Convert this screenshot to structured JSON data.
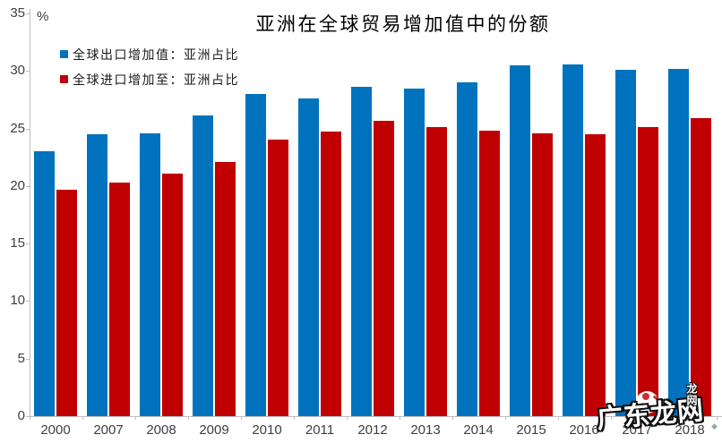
{
  "chart_data": {
    "type": "bar",
    "title": "亚洲在全球贸易增加值中的份额",
    "unit_label": "%",
    "xlabel": "",
    "ylabel": "%",
    "ylim": [
      0,
      35
    ],
    "y_ticks": [
      0,
      5,
      10,
      15,
      20,
      25,
      30,
      35
    ],
    "grid": false,
    "legend_position": "top-left",
    "axis_color": "#bfbfbf",
    "tick_text_color": "#3f3f3f",
    "categories": [
      "2000",
      "2007",
      "2008",
      "2009",
      "2010",
      "2011",
      "2012",
      "2013",
      "2014",
      "2015",
      "2016",
      "2017",
      "2018"
    ],
    "series": [
      {
        "name": "全球出口增加值：亚洲占比",
        "color": "#0072be",
        "values": [
          23.0,
          24.5,
          24.6,
          26.1,
          28.0,
          27.6,
          28.6,
          28.5,
          29.0,
          30.5,
          30.6,
          30.1,
          30.2
        ]
      },
      {
        "name": "全球进口增加至：亚洲占比",
        "color": "#c00000",
        "values": [
          19.7,
          20.3,
          21.1,
          22.1,
          24.0,
          24.7,
          25.7,
          25.1,
          24.8,
          24.6,
          24.5,
          25.1,
          25.9
        ]
      }
    ]
  },
  "watermark": {
    "text": "广东龙网",
    "seal_text": "龙网",
    "corner_glyph": "◆"
  }
}
